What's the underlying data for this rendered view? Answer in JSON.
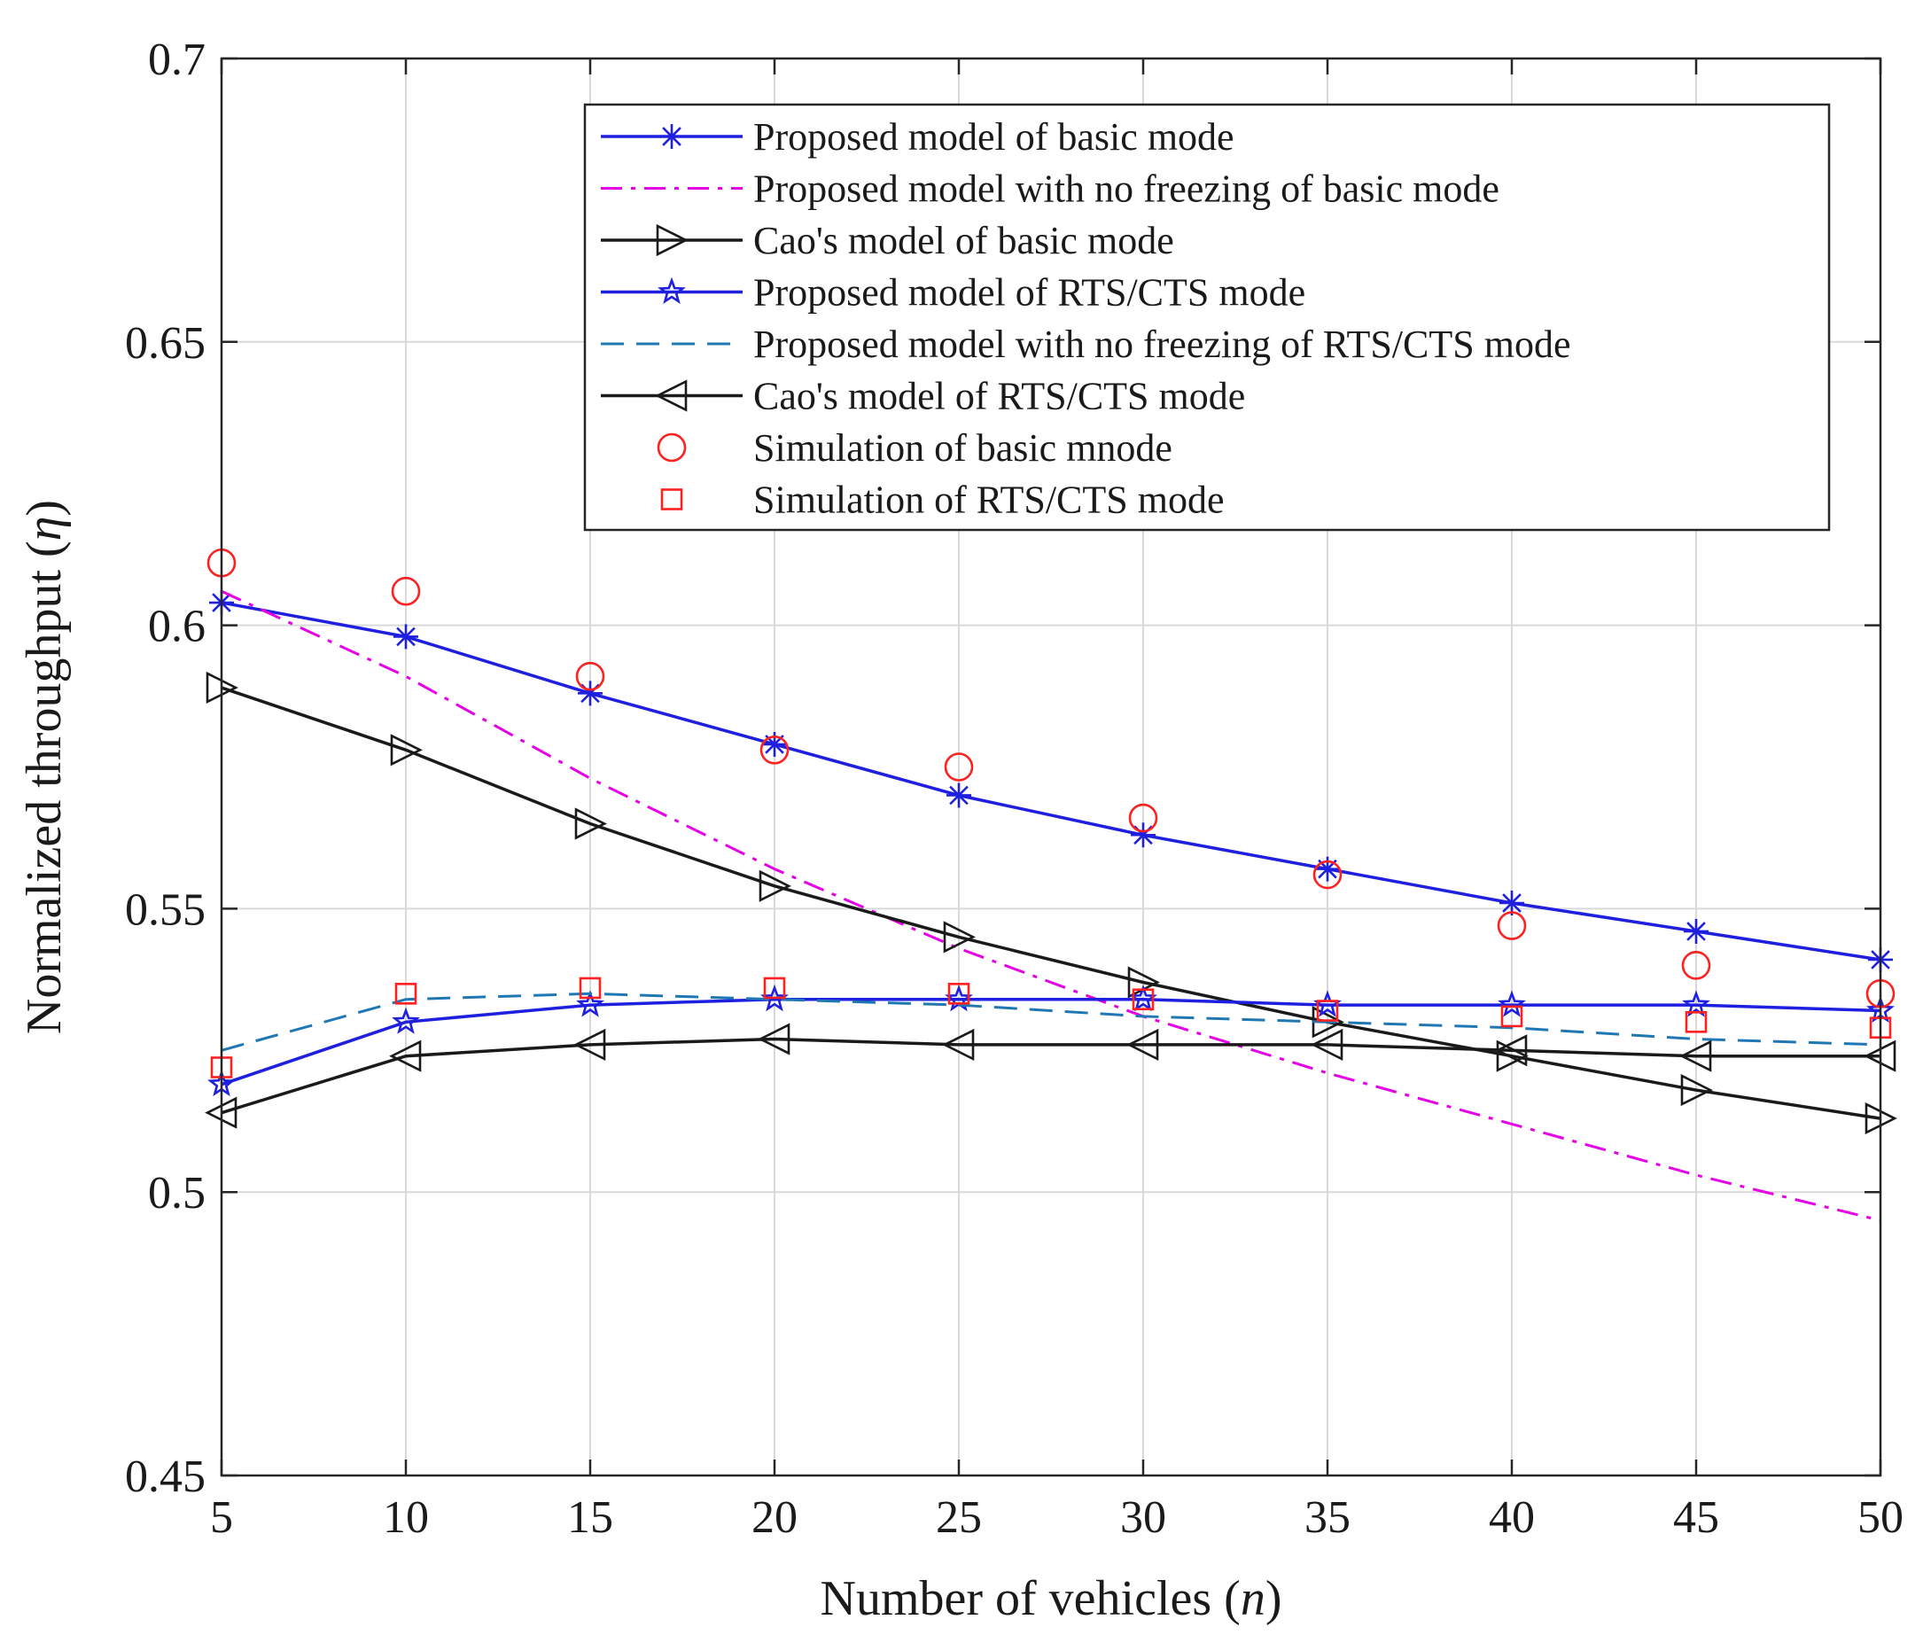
{
  "chart_data": {
    "type": "line",
    "title": "",
    "xlabel": "Number of vehicles",
    "xlabel_var": "n",
    "ylabel": "Normalized throughput",
    "ylabel_var": "η",
    "xlim": [
      5,
      50
    ],
    "ylim": [
      0.45,
      0.7
    ],
    "grid": true,
    "legend_position": "top-right",
    "x_ticks": [
      5,
      10,
      15,
      20,
      25,
      30,
      35,
      40,
      45,
      50
    ],
    "x_tick_labels": [
      "5",
      "10",
      "15",
      "20",
      "25",
      "30",
      "35",
      "40",
      "45",
      "50"
    ],
    "y_ticks": [
      0.45,
      0.5,
      0.55,
      0.6,
      0.65,
      0.7
    ],
    "y_tick_labels": [
      "0.45",
      "0.5",
      "0.55",
      "0.6",
      "0.65",
      "0.7"
    ],
    "x": [
      5,
      10,
      15,
      20,
      25,
      30,
      35,
      40,
      45,
      50
    ],
    "series": [
      {
        "name": "Proposed model of basic mode",
        "color": "#1f1fe0",
        "line": "solid",
        "marker": "asterisk",
        "values": [
          0.604,
          0.598,
          0.588,
          0.579,
          0.57,
          0.563,
          0.557,
          0.551,
          0.546,
          0.541
        ]
      },
      {
        "name": "Proposed model with no freezing of basic mode",
        "color": "#e600e6",
        "line": "dashdot",
        "marker": "none",
        "values": [
          0.606,
          0.591,
          0.573,
          0.557,
          0.543,
          0.531,
          0.521,
          0.512,
          0.503,
          0.495
        ]
      },
      {
        "name": "Cao's model of basic mode",
        "color": "#1a1a1a",
        "line": "solid",
        "marker": "triangle-right",
        "values": [
          0.589,
          0.578,
          0.565,
          0.554,
          0.545,
          0.537,
          0.53,
          0.524,
          0.518,
          0.513
        ]
      },
      {
        "name": "Proposed model of RTS/CTS mode",
        "color": "#1f1fe0",
        "line": "solid",
        "marker": "star",
        "values": [
          0.519,
          0.53,
          0.533,
          0.534,
          0.534,
          0.534,
          0.533,
          0.533,
          0.533,
          0.532
        ]
      },
      {
        "name": "Proposed model with no freezing of RTS/CTS mode",
        "color": "#1f77b4",
        "line": "dashed",
        "marker": "none",
        "values": [
          0.525,
          0.534,
          0.535,
          0.534,
          0.533,
          0.531,
          0.53,
          0.529,
          0.527,
          0.526
        ]
      },
      {
        "name": "Cao's model of RTS/CTS mode",
        "color": "#1a1a1a",
        "line": "solid",
        "marker": "triangle-left",
        "values": [
          0.514,
          0.524,
          0.526,
          0.527,
          0.526,
          0.526,
          0.526,
          0.525,
          0.524,
          0.524
        ]
      },
      {
        "name": "Simulation of basic mnode",
        "color": "#ff2020",
        "line": "none",
        "marker": "circle",
        "values": [
          0.611,
          0.606,
          0.591,
          0.578,
          0.575,
          0.566,
          0.556,
          0.547,
          0.54,
          0.535
        ]
      },
      {
        "name": "Simulation of RTS/CTS mode",
        "color": "#ff2020",
        "line": "none",
        "marker": "square",
        "values": [
          0.522,
          0.535,
          0.536,
          0.536,
          0.535,
          0.534,
          0.532,
          0.531,
          0.53,
          0.529
        ]
      }
    ]
  }
}
